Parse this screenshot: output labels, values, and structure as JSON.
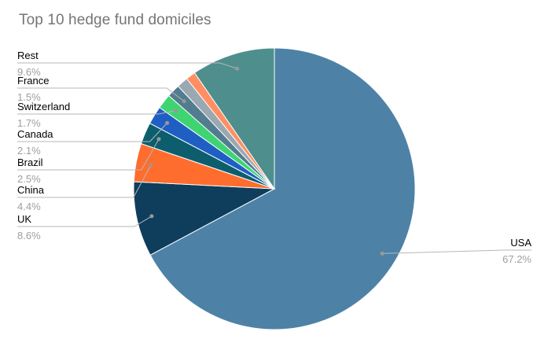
{
  "title": "Top 10 hedge fund domiciles",
  "chart_data": {
    "type": "pie",
    "title": "Top 10 hedge fund domiciles",
    "start_angle_deg": 0,
    "direction": "clockwise",
    "legend_position": "none",
    "labels_style": "callout-leader-lines",
    "slices": [
      {
        "label": "USA",
        "value": 67.2,
        "pct_label": "67.2%",
        "color": "#4d82a6",
        "label_side": "right"
      },
      {
        "label": "UK",
        "value": 8.6,
        "pct_label": "8.6%",
        "color": "#0f3e5c",
        "label_side": "left"
      },
      {
        "label": "China",
        "value": 4.4,
        "pct_label": "4.4%",
        "color": "#ff6d2e",
        "label_side": "left"
      },
      {
        "label": "Brazil",
        "value": 2.5,
        "pct_label": "2.5%",
        "color": "#0c5e6e",
        "label_side": "left"
      },
      {
        "label": "Canada",
        "value": 2.1,
        "pct_label": "2.1%",
        "color": "#1f5fc4",
        "label_side": "left"
      },
      {
        "label": "Switzerland",
        "value": 1.7,
        "pct_label": "1.7%",
        "color": "#3fd472",
        "label_side": "left"
      },
      {
        "label": "France",
        "value": 1.5,
        "pct_label": "1.5%",
        "color": "#527c8f",
        "label_side": "left"
      },
      {
        "label": "",
        "value": 1.3,
        "pct_label": "",
        "color": "#9aa8b2",
        "label_side": "none"
      },
      {
        "label": "",
        "value": 1.1,
        "pct_label": "",
        "color": "#ff8f63",
        "label_side": "none"
      },
      {
        "label": "Rest",
        "value": 9.6,
        "pct_label": "9.6%",
        "color": "#4e8f8e",
        "label_side": "left"
      }
    ]
  },
  "colors": {
    "background": "#ffffff",
    "title": "#757575",
    "label_name": "#000000",
    "label_pct": "#9e9e9e",
    "leader_line": "#b7b7b7",
    "dot": "#999999",
    "slice_stroke": "#ffffff"
  }
}
